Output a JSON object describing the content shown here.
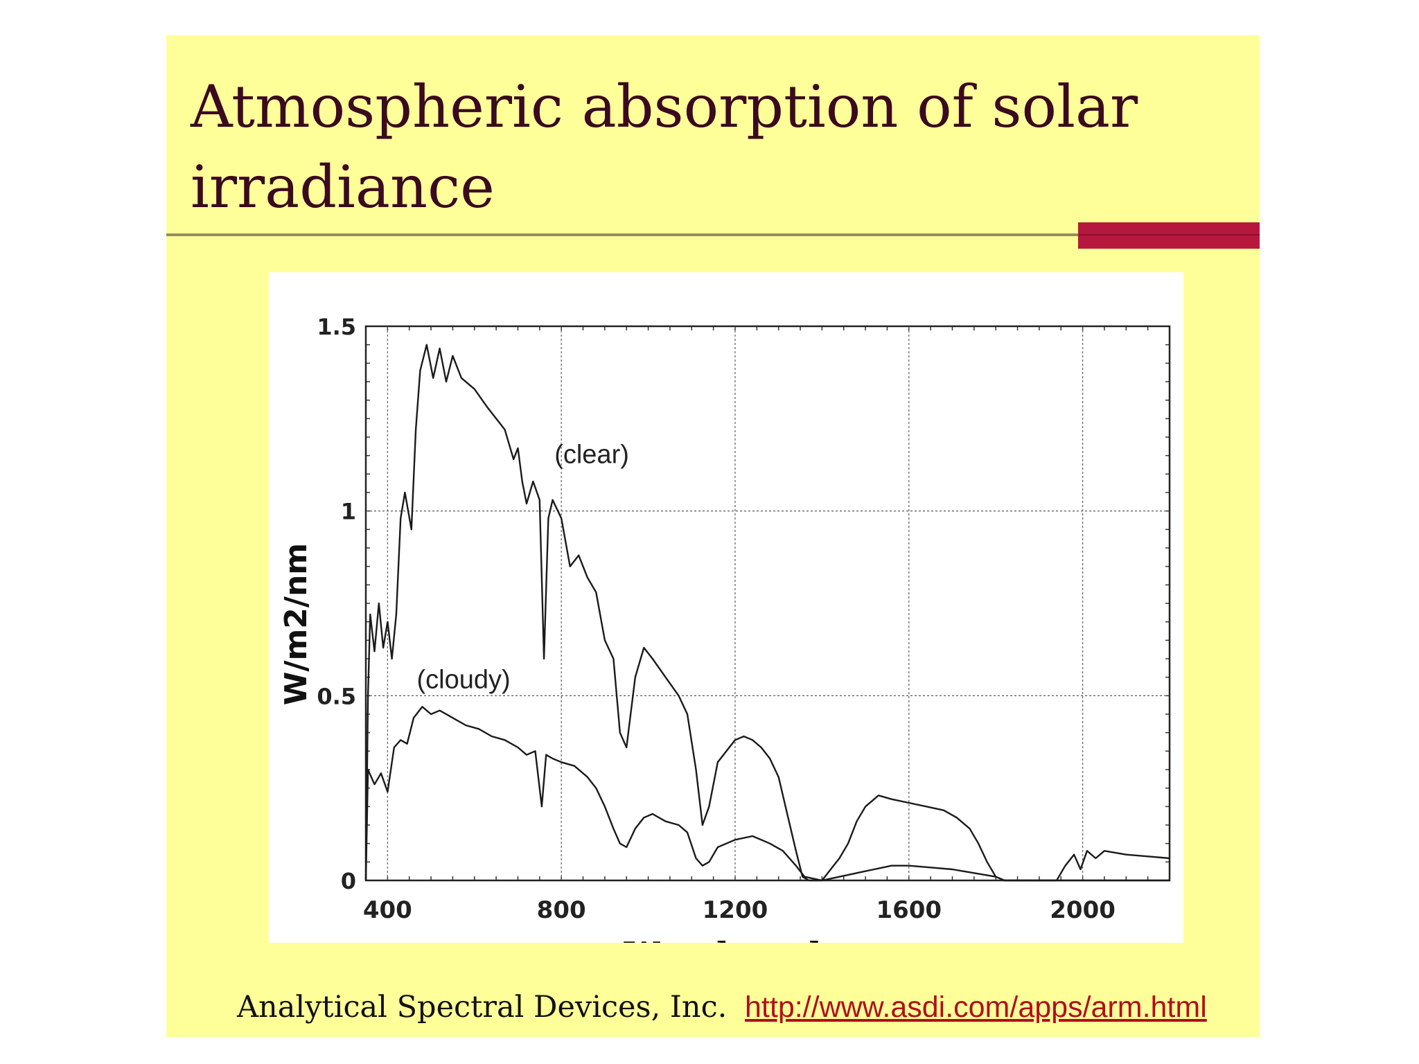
{
  "slide": {
    "title": "Atmospheric absorption of solar irradiance",
    "footer_credit": "Analytical Spectral Devices, Inc.",
    "footer_link": "http://www.asdi.com/apps/arm.html",
    "background_color": "#ffff99",
    "accent_color": "#b5173d",
    "title_color": "#3b0a1f"
  },
  "chart_data": {
    "type": "line",
    "title": "",
    "xlabel": "Wavelength, nm",
    "ylabel": "W/m2/nm",
    "xlim": [
      350,
      2200
    ],
    "ylim": [
      0,
      1.5
    ],
    "xticks": [
      400,
      800,
      1200,
      1600,
      2000
    ],
    "yticks": [
      0,
      0.5,
      1,
      1.5
    ],
    "xtick_labels": [
      "400",
      "800",
      "1200",
      "1600",
      "2000"
    ],
    "ytick_labels": [
      "0",
      "0.5",
      "1",
      "1.5"
    ],
    "grid": true,
    "series": [
      {
        "name": "clear",
        "annotation": "(clear)",
        "annotation_at": [
          870,
          1.13
        ],
        "points": [
          [
            350,
            0.0
          ],
          [
            355,
            0.5
          ],
          [
            360,
            0.72
          ],
          [
            370,
            0.62
          ],
          [
            380,
            0.75
          ],
          [
            390,
            0.63
          ],
          [
            400,
            0.7
          ],
          [
            410,
            0.6
          ],
          [
            420,
            0.72
          ],
          [
            430,
            0.98
          ],
          [
            440,
            1.05
          ],
          [
            455,
            0.95
          ],
          [
            465,
            1.22
          ],
          [
            475,
            1.38
          ],
          [
            490,
            1.45
          ],
          [
            505,
            1.36
          ],
          [
            520,
            1.44
          ],
          [
            535,
            1.35
          ],
          [
            550,
            1.42
          ],
          [
            570,
            1.36
          ],
          [
            600,
            1.33
          ],
          [
            630,
            1.28
          ],
          [
            650,
            1.25
          ],
          [
            670,
            1.22
          ],
          [
            690,
            1.14
          ],
          [
            700,
            1.17
          ],
          [
            710,
            1.08
          ],
          [
            720,
            1.02
          ],
          [
            735,
            1.08
          ],
          [
            750,
            1.03
          ],
          [
            760,
            0.6
          ],
          [
            770,
            0.98
          ],
          [
            780,
            1.03
          ],
          [
            800,
            0.98
          ],
          [
            820,
            0.85
          ],
          [
            840,
            0.88
          ],
          [
            860,
            0.82
          ],
          [
            880,
            0.78
          ],
          [
            900,
            0.65
          ],
          [
            920,
            0.6
          ],
          [
            935,
            0.4
          ],
          [
            950,
            0.36
          ],
          [
            970,
            0.55
          ],
          [
            990,
            0.63
          ],
          [
            1010,
            0.6
          ],
          [
            1040,
            0.55
          ],
          [
            1070,
            0.5
          ],
          [
            1090,
            0.45
          ],
          [
            1110,
            0.3
          ],
          [
            1125,
            0.15
          ],
          [
            1140,
            0.2
          ],
          [
            1160,
            0.32
          ],
          [
            1180,
            0.35
          ],
          [
            1200,
            0.38
          ],
          [
            1220,
            0.39
          ],
          [
            1240,
            0.38
          ],
          [
            1260,
            0.36
          ],
          [
            1280,
            0.33
          ],
          [
            1300,
            0.28
          ],
          [
            1320,
            0.18
          ],
          [
            1340,
            0.08
          ],
          [
            1355,
            0.01
          ],
          [
            1370,
            0.0
          ],
          [
            1400,
            0.0
          ],
          [
            1420,
            0.03
          ],
          [
            1440,
            0.06
          ],
          [
            1460,
            0.1
          ],
          [
            1480,
            0.16
          ],
          [
            1500,
            0.2
          ],
          [
            1530,
            0.23
          ],
          [
            1560,
            0.22
          ],
          [
            1600,
            0.21
          ],
          [
            1640,
            0.2
          ],
          [
            1680,
            0.19
          ],
          [
            1710,
            0.17
          ],
          [
            1740,
            0.14
          ],
          [
            1760,
            0.1
          ],
          [
            1780,
            0.05
          ],
          [
            1800,
            0.01
          ],
          [
            1820,
            0.0
          ],
          [
            1900,
            0.0
          ],
          [
            1940,
            0.0
          ],
          [
            1960,
            0.04
          ],
          [
            1980,
            0.07
          ],
          [
            1995,
            0.03
          ],
          [
            2010,
            0.08
          ],
          [
            2030,
            0.06
          ],
          [
            2050,
            0.08
          ],
          [
            2100,
            0.07
          ],
          [
            2150,
            0.065
          ],
          [
            2200,
            0.06
          ]
        ]
      },
      {
        "name": "cloudy",
        "annotation": "(cloudy)",
        "annotation_at": [
          575,
          0.52
        ],
        "points": [
          [
            350,
            0.0
          ],
          [
            355,
            0.3
          ],
          [
            370,
            0.26
          ],
          [
            385,
            0.29
          ],
          [
            400,
            0.24
          ],
          [
            415,
            0.36
          ],
          [
            430,
            0.38
          ],
          [
            445,
            0.37
          ],
          [
            460,
            0.44
          ],
          [
            480,
            0.47
          ],
          [
            500,
            0.45
          ],
          [
            520,
            0.46
          ],
          [
            550,
            0.44
          ],
          [
            580,
            0.42
          ],
          [
            610,
            0.41
          ],
          [
            640,
            0.39
          ],
          [
            670,
            0.38
          ],
          [
            700,
            0.36
          ],
          [
            720,
            0.34
          ],
          [
            740,
            0.35
          ],
          [
            755,
            0.2
          ],
          [
            765,
            0.34
          ],
          [
            780,
            0.33
          ],
          [
            800,
            0.32
          ],
          [
            830,
            0.31
          ],
          [
            860,
            0.28
          ],
          [
            880,
            0.25
          ],
          [
            900,
            0.2
          ],
          [
            920,
            0.14
          ],
          [
            935,
            0.1
          ],
          [
            950,
            0.09
          ],
          [
            970,
            0.14
          ],
          [
            990,
            0.17
          ],
          [
            1010,
            0.18
          ],
          [
            1040,
            0.16
          ],
          [
            1070,
            0.15
          ],
          [
            1090,
            0.13
          ],
          [
            1110,
            0.06
          ],
          [
            1125,
            0.04
          ],
          [
            1140,
            0.05
          ],
          [
            1160,
            0.09
          ],
          [
            1200,
            0.11
          ],
          [
            1240,
            0.12
          ],
          [
            1280,
            0.1
          ],
          [
            1310,
            0.08
          ],
          [
            1340,
            0.04
          ],
          [
            1360,
            0.01
          ],
          [
            1400,
            0.0
          ],
          [
            1440,
            0.01
          ],
          [
            1480,
            0.02
          ],
          [
            1520,
            0.03
          ],
          [
            1560,
            0.04
          ],
          [
            1600,
            0.04
          ],
          [
            1650,
            0.035
          ],
          [
            1700,
            0.03
          ],
          [
            1750,
            0.02
          ],
          [
            1800,
            0.01
          ],
          [
            1820,
            0.0
          ],
          [
            2200,
            0.0
          ]
        ]
      }
    ]
  }
}
